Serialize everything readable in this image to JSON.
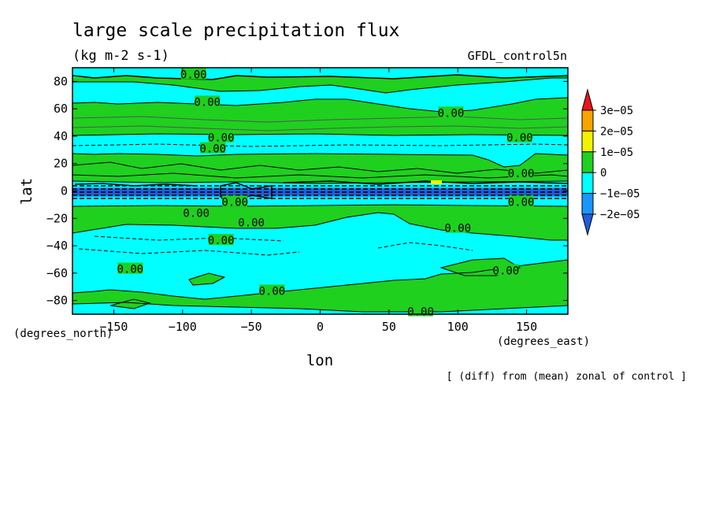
{
  "chart_data": {
    "type": "contour",
    "title": "large scale precipitation flux",
    "units": "(kg m-2 s-1)",
    "dataset": "GFDL_control5n",
    "note": "[ (diff) from (mean) zonal of control ]",
    "xlabel": "lon",
    "ylabel": "lat",
    "x_units": "(degrees_east)",
    "y_units": "(degrees_north)",
    "xlim": [
      -180,
      180
    ],
    "ylim": [
      -90,
      90
    ],
    "x_ticks": [
      -150,
      -100,
      -50,
      0,
      50,
      100,
      150
    ],
    "y_ticks": [
      -80,
      -60,
      -40,
      -20,
      0,
      20,
      40,
      60,
      80
    ],
    "colorbar": {
      "levels": [
        "3e-05",
        "2e-05",
        "1e-05",
        "0",
        "-1e-05",
        "-2e-05"
      ],
      "colors": [
        "#e8141c",
        "#f7a300",
        "#f2f200",
        "#1fd01f",
        "#00ffff",
        "#1a96ff",
        "#1f5fdc"
      ]
    },
    "contour_labels": [
      {
        "text": "0.00",
        "lon": -92,
        "lat": 85
      },
      {
        "text": "0.00",
        "lon": -82,
        "lat": 65
      },
      {
        "text": "0.00",
        "lon": 95,
        "lat": 57
      },
      {
        "text": "0.00",
        "lon": -72,
        "lat": 39
      },
      {
        "text": "0.00",
        "lon": -78,
        "lat": 31
      },
      {
        "text": "0.00",
        "lon": 145,
        "lat": 39
      },
      {
        "text": "0.00",
        "lon": 146,
        "lat": 13
      },
      {
        "text": "0.00",
        "lon": -62,
        "lat": -8
      },
      {
        "text": "0.00",
        "lon": 146,
        "lat": -8
      },
      {
        "text": "0.00",
        "lon": -90,
        "lat": -16
      },
      {
        "text": "0.00",
        "lon": -50,
        "lat": -23
      },
      {
        "text": "0.00",
        "lon": 100,
        "lat": -27
      },
      {
        "text": "0.00",
        "lon": -72,
        "lat": -36
      },
      {
        "text": "0.00",
        "lon": -138,
        "lat": -57
      },
      {
        "text": "0.00",
        "lon": 135,
        "lat": -58
      },
      {
        "text": "0.00",
        "lon": -35,
        "lat": -73
      },
      {
        "text": "0.00",
        "lon": 73,
        "lat": -88
      }
    ]
  }
}
